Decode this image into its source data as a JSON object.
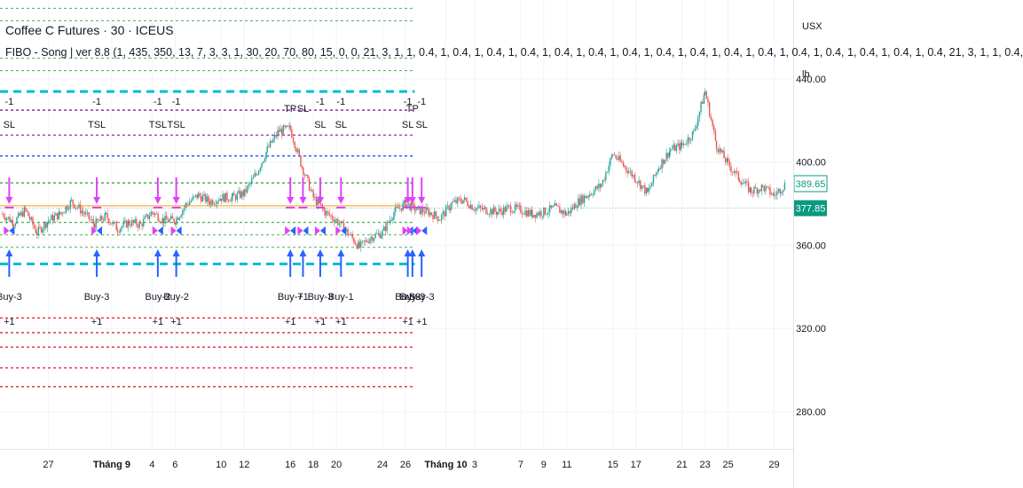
{
  "header": {
    "symbol_title": "Coffee C Futures · 30 · ICEUS",
    "indicator_label": "FIBO - Song | ver 8.8 (1, 435, 350, 13, 7, 3, 3, 1, 30, 20, 70, 80, 15, 0, 0, 21, 3, 1, 1, 0.4, 1, 0.4, 1, 0.4, 1, 0.4, 1, 0.4, 1, 0.4, 1, 0.4, 1, 0.4, 1, 0.4, 1, 0.4, 1, 0.4, 1, 0.4, 1, 0.4, 1, 0.4, 1, 0.4, 1, 0.4, 21, 3, 1, 1, 0.4,"
  },
  "price_unit": {
    "line1": "USX",
    "line2": "lb"
  },
  "colors": {
    "up": "#26a69a",
    "down": "#ef5350",
    "wick": "#787b86",
    "cyan": "#00bcd4",
    "green": "#4caf50",
    "purple": "#9c27b0",
    "blue": "#2962ff",
    "red": "#f23645",
    "magenta": "#e040fb",
    "arrow_up": "#2962ff",
    "arrow_down": "#e040fb",
    "current_label": "#089981"
  },
  "chart_data": {
    "type": "candlestick",
    "y_ticks": [
      {
        "value": 280,
        "label": "280.00"
      },
      {
        "value": 320,
        "label": "320.00"
      },
      {
        "value": 360,
        "label": "360.00"
      },
      {
        "value": 400,
        "label": "400.00"
      },
      {
        "value": 440,
        "label": "440.00"
      }
    ],
    "ylim": [
      262,
      478
    ],
    "x_ticks": [
      {
        "label": "27",
        "t": 27
      },
      {
        "label": "Tháng 9",
        "t": 32.5,
        "bold": true
      },
      {
        "label": "4",
        "t": 36
      },
      {
        "label": "6",
        "t": 38
      },
      {
        "label": "10",
        "t": 42
      },
      {
        "label": "12",
        "t": 44
      },
      {
        "label": "16",
        "t": 48
      },
      {
        "label": "18",
        "t": 50
      },
      {
        "label": "20",
        "t": 52
      },
      {
        "label": "24",
        "t": 56
      },
      {
        "label": "26",
        "t": 58
      },
      {
        "label": "Tháng 10",
        "t": 61.5,
        "bold": true
      },
      {
        "label": "3",
        "t": 64
      },
      {
        "label": "7",
        "t": 68
      },
      {
        "label": "9",
        "t": 70
      },
      {
        "label": "11",
        "t": 72
      },
      {
        "label": "15",
        "t": 76
      },
      {
        "label": "17",
        "t": 78
      },
      {
        "label": "21",
        "t": 82
      },
      {
        "label": "23",
        "t": 84
      },
      {
        "label": "25",
        "t": 86
      },
      {
        "label": "29",
        "t": 90
      }
    ],
    "xlim": [
      22.8,
      91.5
    ],
    "path_points": [
      [
        23,
        375
      ],
      [
        24,
        371
      ],
      [
        25,
        377
      ],
      [
        26,
        366
      ],
      [
        27,
        372
      ],
      [
        28,
        375
      ],
      [
        29,
        381
      ],
      [
        30,
        376
      ],
      [
        31,
        370
      ],
      [
        32,
        374
      ],
      [
        33,
        368
      ],
      [
        34,
        371
      ],
      [
        35,
        370
      ],
      [
        36,
        376
      ],
      [
        37,
        372
      ],
      [
        38,
        372
      ],
      [
        39,
        380
      ],
      [
        40,
        384
      ],
      [
        41,
        381
      ],
      [
        42,
        383
      ],
      [
        43,
        383
      ],
      [
        44,
        385
      ],
      [
        45,
        394
      ],
      [
        46,
        406
      ],
      [
        47,
        415
      ],
      [
        48,
        416
      ],
      [
        49,
        398
      ],
      [
        50,
        383
      ],
      [
        51,
        376
      ],
      [
        52,
        372
      ],
      [
        53,
        366
      ],
      [
        54,
        359
      ],
      [
        55,
        364
      ],
      [
        56,
        366
      ],
      [
        57,
        376
      ],
      [
        58,
        380
      ],
      [
        59,
        377
      ],
      [
        60,
        376
      ],
      [
        61,
        373
      ],
      [
        62,
        380
      ],
      [
        63,
        382
      ],
      [
        64,
        378
      ],
      [
        65,
        377
      ],
      [
        66,
        376
      ],
      [
        67,
        378
      ],
      [
        68,
        377
      ],
      [
        69,
        375
      ],
      [
        70,
        376
      ],
      [
        71,
        378
      ],
      [
        72,
        375
      ],
      [
        73,
        381
      ],
      [
        74,
        385
      ],
      [
        75,
        389
      ],
      [
        76,
        404
      ],
      [
        77,
        398
      ],
      [
        78,
        392
      ],
      [
        79,
        385
      ],
      [
        80,
        398
      ],
      [
        81,
        406
      ],
      [
        82,
        408
      ],
      [
        83,
        414
      ],
      [
        84,
        434
      ],
      [
        85,
        408
      ],
      [
        86,
        399
      ],
      [
        87,
        392
      ],
      [
        88,
        386
      ],
      [
        89,
        388
      ],
      [
        90,
        384
      ],
      [
        91,
        389.65
      ]
    ],
    "current_price": {
      "value": 389.65,
      "label": "389.65"
    },
    "prev_close": {
      "value": 377.85,
      "label": "377.85"
    },
    "levels": [
      {
        "value": 474,
        "color": "green",
        "style": "dot",
        "width": 1
      },
      {
        "value": 468,
        "color": "green",
        "style": "dot",
        "width": 1
      },
      {
        "value": 450,
        "color": "green",
        "style": "dot",
        "width": 1
      },
      {
        "value": 444,
        "color": "green",
        "style": "dot",
        "width": 1
      },
      {
        "value": 434,
        "color": "cyan",
        "style": "dash",
        "width": 3
      },
      {
        "value": 425,
        "color": "purple",
        "style": "dot",
        "width": 1.5
      },
      {
        "value": 413,
        "color": "purple",
        "style": "dot",
        "width": 1.2
      },
      {
        "value": 403,
        "color": "blue",
        "style": "dot",
        "width": 1.5
      },
      {
        "value": 390,
        "color": "green",
        "style": "dot",
        "width": 1.5
      },
      {
        "value": 379,
        "color": "#f9a825",
        "style": "solid",
        "width": 1.2
      },
      {
        "value": 371,
        "color": "green",
        "style": "dot",
        "width": 1.2
      },
      {
        "value": 365,
        "color": "green",
        "style": "dot",
        "width": 1
      },
      {
        "value": 359,
        "color": "green",
        "style": "dot",
        "width": 1
      },
      {
        "value": 351,
        "color": "cyan",
        "style": "dash",
        "width": 3
      },
      {
        "value": 325,
        "color": "red",
        "style": "dot",
        "width": 1.5
      },
      {
        "value": 318,
        "color": "red",
        "style": "dot",
        "width": 1.5
      },
      {
        "value": 311,
        "color": "red",
        "style": "dot",
        "width": 1.5
      },
      {
        "value": 301,
        "color": "red",
        "style": "dot",
        "width": 1.5
      },
      {
        "value": 292,
        "color": "red",
        "style": "dot",
        "width": 1.5
      }
    ],
    "levels_end_t": 58.8,
    "signals": [
      {
        "t": 23.6,
        "top_labels": [
          "-1",
          "SL"
        ],
        "bottom_labels": [
          "Buy-3",
          "+1"
        ]
      },
      {
        "t": 31.2,
        "top_labels": [
          "-1",
          "TSL"
        ],
        "bottom_labels": [
          "Buy-3",
          "+1"
        ]
      },
      {
        "t": 36.5,
        "top_labels": [
          "-1",
          "TSL"
        ],
        "bottom_labels": [
          "Buy-2",
          "+1"
        ]
      },
      {
        "t": 38.1,
        "top_labels": [
          "-1",
          "TSL"
        ],
        "bottom_labels": [
          "Buy-2",
          "+1"
        ]
      },
      {
        "t": 48.0,
        "top_labels": [
          "TP"
        ],
        "bottom_labels": [
          "Buy-7",
          "+1"
        ]
      },
      {
        "t": 49.1,
        "top_labels": [
          "SL"
        ],
        "bottom_labels": [
          "+1"
        ]
      },
      {
        "t": 50.6,
        "top_labels": [
          "-1",
          "SL"
        ],
        "bottom_labels": [
          "Buy-3",
          "+1"
        ]
      },
      {
        "t": 52.4,
        "top_labels": [
          "-1",
          "SL"
        ],
        "bottom_labels": [
          "Buy-1",
          "+1"
        ]
      },
      {
        "t": 58.2,
        "top_labels": [
          "-1",
          "SL"
        ],
        "bottom_labels": [
          "Buy-3",
          "+1"
        ]
      },
      {
        "t": 58.6,
        "top_labels": [
          "TP"
        ],
        "bottom_labels": [
          "Buy-3"
        ]
      },
      {
        "t": 59.4,
        "top_labels": [
          "-1",
          "SL"
        ],
        "bottom_labels": [
          "Buy-3",
          "+1"
        ]
      }
    ]
  }
}
